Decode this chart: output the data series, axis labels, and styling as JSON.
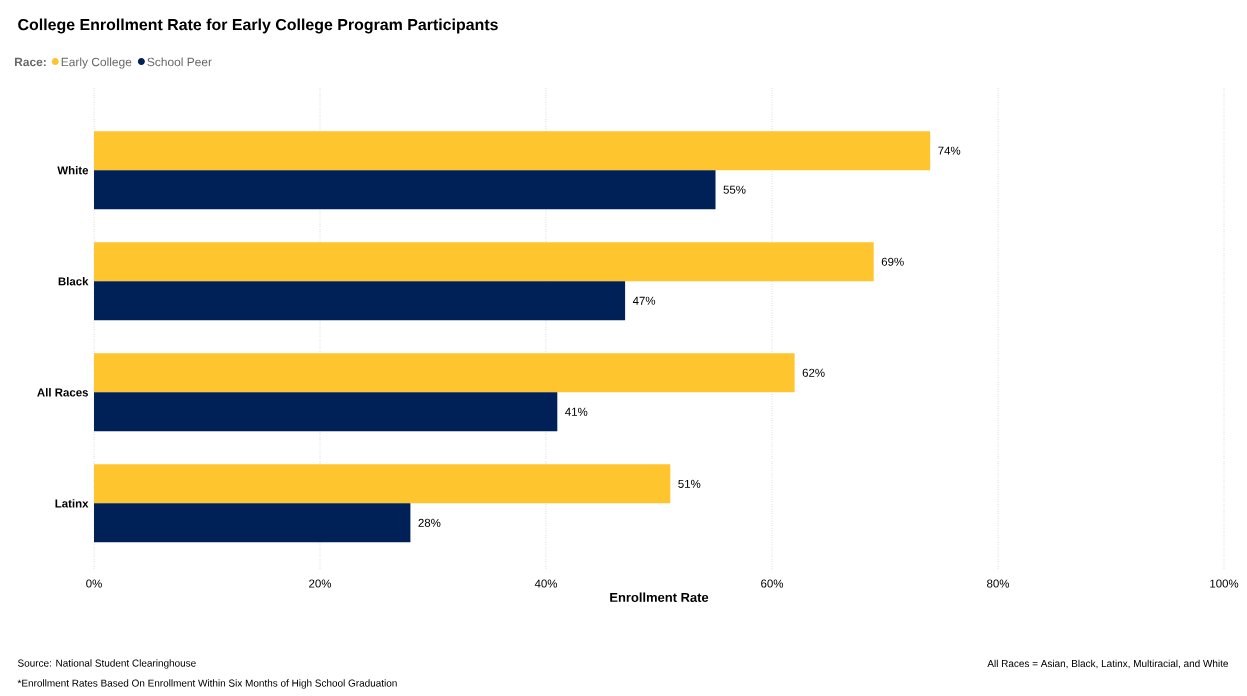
{
  "chart_data": {
    "type": "bar",
    "orientation": "horizontal",
    "title": "College Enrollment Rate for Early College Program Participants",
    "xlabel": "Enrollment Rate",
    "legend_title": "Race:",
    "legend": "top left",
    "grid": "x",
    "categories": [
      "White",
      "Black",
      "All Races",
      "Latinx"
    ],
    "series": [
      {
        "name": "Early College",
        "color": "#ffc52f",
        "values": [
          74,
          69,
          62,
          51
        ],
        "value_labels": [
          "74%",
          "69%",
          "62%",
          "51%"
        ]
      },
      {
        "name": "School Peer",
        "color": "#002157",
        "values": [
          55,
          47,
          41,
          28
        ],
        "value_labels": [
          "55%",
          "47%",
          "41%",
          "28%"
        ]
      }
    ],
    "xlim": [
      0,
      100
    ],
    "xticks": [
      {
        "value": 0,
        "label": "0%"
      },
      {
        "value": 20,
        "label": "20%"
      },
      {
        "value": 40,
        "label": "40%"
      },
      {
        "value": 60,
        "label": "60%"
      },
      {
        "value": 80,
        "label": "80%"
      },
      {
        "value": 100,
        "label": "100%"
      }
    ],
    "annotations": [
      "Source: National Student Clearinghouse",
      "*Enrollment Rates Based On Enrollment Within Six Months of High School Graduation",
      "All Races = Asian, Black, Latinx, Multiracial, and White"
    ]
  }
}
